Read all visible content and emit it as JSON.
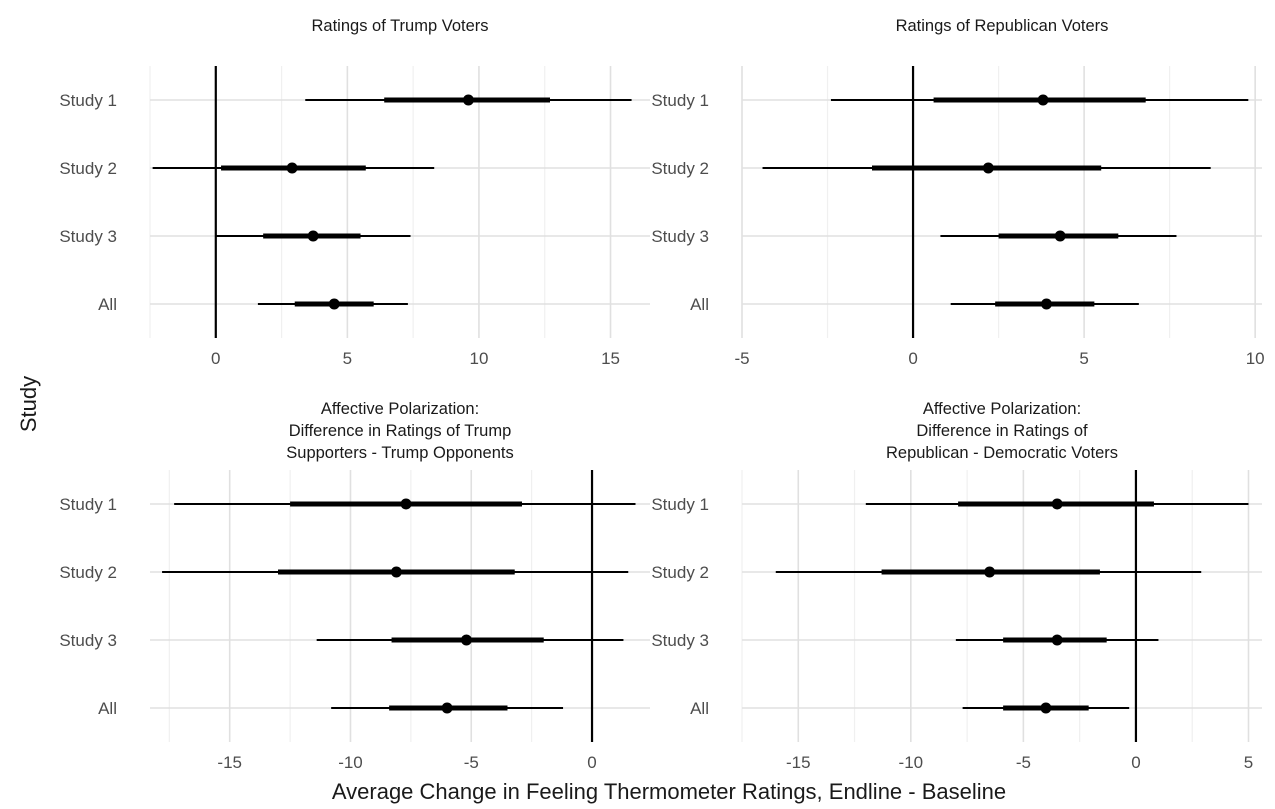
{
  "x_axis_title": "Average Change in Feeling Thermometer Ratings, Endline - Baseline",
  "y_axis_title": "Study",
  "chart_data": [
    {
      "type": "interval-plot",
      "title_lines": [
        "Ratings of Trump Voters"
      ],
      "categories": [
        "Study 1",
        "Study 2",
        "Study 3",
        "All"
      ],
      "xlim": [
        -2.5,
        16.5
      ],
      "xticks": [
        0,
        5,
        10,
        15
      ],
      "xtick_labels": [
        "0",
        "5",
        "10",
        "15"
      ],
      "reference_line": 0,
      "grid": true,
      "estimates": [
        9.6,
        2.9,
        3.7,
        4.5
      ],
      "inner_interval_low": [
        6.4,
        0.2,
        1.8,
        3.0
      ],
      "inner_interval_high": [
        12.7,
        5.7,
        5.5,
        6.0
      ],
      "outer_interval_low": [
        3.4,
        -2.4,
        0.0,
        1.6
      ],
      "outer_interval_high": [
        15.8,
        8.3,
        7.4,
        7.3
      ]
    },
    {
      "type": "interval-plot",
      "title_lines": [
        "Ratings of Republican Voters"
      ],
      "categories": [
        "Study 1",
        "Study 2",
        "Study 3",
        "All"
      ],
      "xlim": [
        -5,
        10.2
      ],
      "xticks": [
        -5,
        0,
        5,
        10
      ],
      "xtick_labels": [
        "-5",
        "0",
        "5",
        "10"
      ],
      "reference_line": 0,
      "grid": true,
      "estimates": [
        3.8,
        2.2,
        4.3,
        3.9
      ],
      "inner_interval_low": [
        0.6,
        -1.2,
        2.5,
        2.4
      ],
      "inner_interval_high": [
        6.8,
        5.5,
        6.0,
        5.3
      ],
      "outer_interval_low": [
        -2.4,
        -4.4,
        0.8,
        1.1
      ],
      "outer_interval_high": [
        9.8,
        8.7,
        7.7,
        6.6
      ]
    },
    {
      "type": "interval-plot",
      "title_lines": [
        "Affective Polarization:",
        "Difference in Ratings of Trump",
        "Supporters - Trump Opponents"
      ],
      "categories": [
        "Study 1",
        "Study 2",
        "Study 3",
        "All"
      ],
      "xlim": [
        -18.3,
        2.4
      ],
      "xticks": [
        -15,
        -10,
        -5,
        0
      ],
      "xtick_labels": [
        "-15",
        "-10",
        "-5",
        "0"
      ],
      "reference_line": 0,
      "grid": true,
      "estimates": [
        -7.7,
        -8.1,
        -5.2,
        -6.0
      ],
      "inner_interval_low": [
        -12.5,
        -13.0,
        -8.3,
        -8.4
      ],
      "inner_interval_high": [
        -2.9,
        -3.2,
        -2.0,
        -3.5
      ],
      "outer_interval_low": [
        -17.3,
        -17.8,
        -11.4,
        -10.8
      ],
      "outer_interval_high": [
        1.8,
        1.5,
        1.3,
        -1.2
      ]
    },
    {
      "type": "interval-plot",
      "title_lines": [
        "Affective Polarization:",
        "Difference in Ratings of",
        "Republican - Democratic Voters"
      ],
      "categories": [
        "Study 1",
        "Study 2",
        "Study 3",
        "All"
      ],
      "xlim": [
        -17.5,
        5.6
      ],
      "xticks": [
        -15,
        -10,
        -5,
        0,
        5
      ],
      "xtick_labels": [
        "-15",
        "-10",
        "-5",
        "0",
        "5"
      ],
      "reference_line": 0,
      "grid": true,
      "estimates": [
        -3.5,
        -6.5,
        -3.5,
        -4.0
      ],
      "inner_interval_low": [
        -7.9,
        -11.3,
        -5.9,
        -5.9
      ],
      "inner_interval_high": [
        0.8,
        -1.6,
        -1.3,
        -2.1
      ],
      "outer_interval_low": [
        -12.0,
        -16.0,
        -8.0,
        -7.7
      ],
      "outer_interval_high": [
        5.0,
        2.9,
        1.0,
        -0.3
      ]
    }
  ]
}
